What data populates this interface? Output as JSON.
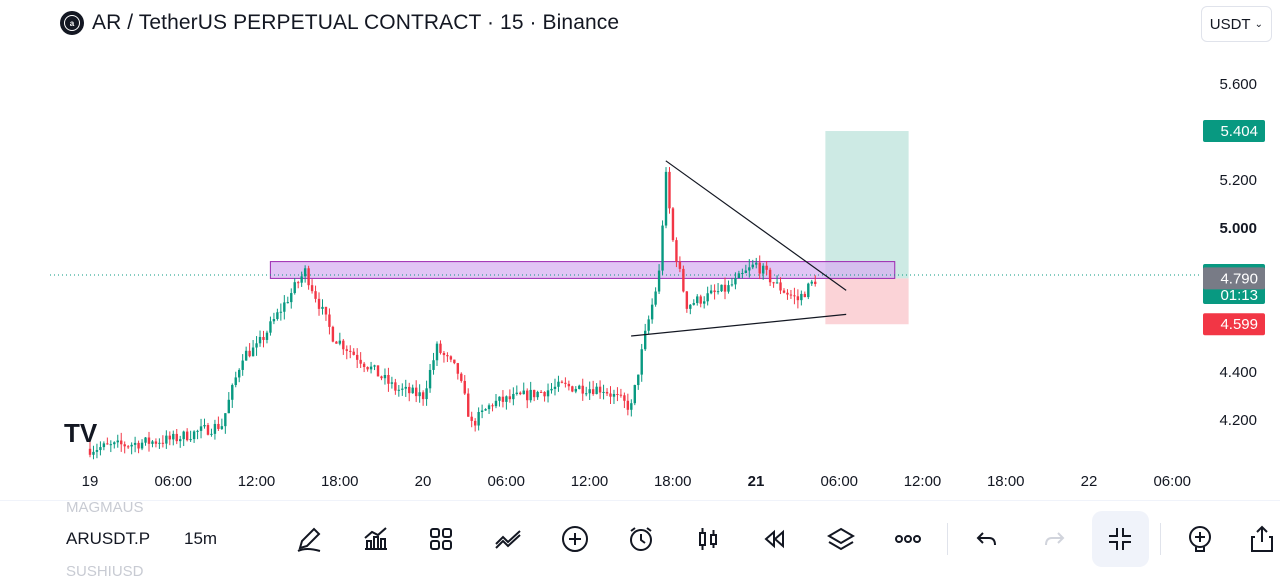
{
  "header": {
    "logo_text": "a",
    "title": "AR / TetherUS PERPETUAL CONTRACT · 15 · Binance"
  },
  "currency": {
    "label": "USDT",
    "icon": "chevron-down-icon"
  },
  "watermark": {
    "text": "TV",
    "icon": "tradingview-logo"
  },
  "toolbar": {
    "symbol_above": "MAGMAUS",
    "symbol": "ARUSDT.P",
    "symbol_below": "SUSHIUSD",
    "interval": "15m",
    "icons": [
      "drawing-pencil-icon",
      "indicators-icon",
      "templates-grid-icon",
      "compare-icon",
      "add-circle-icon",
      "alert-clock-icon",
      "candle-type-icon",
      "replay-icon",
      "layers-icon",
      "more-icon",
      "undo-icon",
      "redo-icon",
      "collapse-icon",
      "add-zoom-icon",
      "share-icon"
    ]
  },
  "chart_data": {
    "type": "candlestick",
    "title": "AR / TetherUS PERPETUAL CONTRACT · 15 · Binance",
    "x_ticks": [
      "19",
      "06:00",
      "12:00",
      "18:00",
      "20",
      "06:00",
      "12:00",
      "18:00",
      "21",
      "06:00",
      "12:00",
      "18:00",
      "22",
      "06:00"
    ],
    "x_ticks_bold": [
      "21"
    ],
    "y_ticks": [
      "5.600",
      "5.200",
      "5.000",
      "4.400",
      "4.200"
    ],
    "y_ticks_bold": [
      "5.000"
    ],
    "ylim": [
      4.05,
      5.75
    ],
    "price_labels": [
      {
        "name": "take-profit",
        "value": "5.404",
        "color": "#089981"
      },
      {
        "name": "last-price",
        "value": "4.804",
        "sub": "01:13",
        "color": "#089981"
      },
      {
        "name": "entry",
        "value": "4.790",
        "color": "#787b86"
      },
      {
        "name": "stop-loss",
        "value": "4.599",
        "color": "#f23645"
      }
    ],
    "colors": {
      "up": "#089981",
      "down": "#f23645",
      "zone": "#d7b2f2",
      "zone_border": "#9c27b0",
      "profit": "#cdeae4",
      "loss": "#fbd3d7"
    },
    "grid": false,
    "key_points": [
      {
        "time": "19 00:00",
        "price": 4.08
      },
      {
        "time": "19 06:00",
        "price": 4.12
      },
      {
        "time": "19 09:30",
        "price": 4.18
      },
      {
        "time": "19 11:00",
        "price": 4.47
      },
      {
        "time": "19 12:00",
        "price": 4.5
      },
      {
        "time": "19 15:30",
        "price": 4.82
      },
      {
        "time": "19 17:30",
        "price": 4.55
      },
      {
        "time": "19 22:00",
        "price": 4.33
      },
      {
        "time": "20 00:00",
        "price": 4.3
      },
      {
        "time": "20 01:00",
        "price": 4.5
      },
      {
        "time": "20 02:30",
        "price": 4.4
      },
      {
        "time": "20 03:30",
        "price": 4.18
      },
      {
        "time": "20 05:00",
        "price": 4.27
      },
      {
        "time": "20 08:00",
        "price": 4.31
      },
      {
        "time": "20 10:00",
        "price": 4.34
      },
      {
        "time": "20 13:00",
        "price": 4.33
      },
      {
        "time": "20 15:00",
        "price": 4.25
      },
      {
        "time": "20 16:00",
        "price": 4.55
      },
      {
        "time": "20 17:00",
        "price": 4.8
      },
      {
        "time": "20 17:30",
        "price": 5.22
      },
      {
        "time": "20 18:00",
        "price": 4.95
      },
      {
        "time": "20 19:00",
        "price": 4.68
      },
      {
        "time": "20 22:00",
        "price": 4.75
      },
      {
        "time": "21 00:00",
        "price": 4.85
      },
      {
        "time": "21 01:30",
        "price": 4.76
      },
      {
        "time": "21 03:00",
        "price": 4.7
      },
      {
        "time": "21 04:30",
        "price": 4.8
      }
    ],
    "annotations": [
      {
        "type": "zone",
        "from": "19 13:00",
        "to": "21 10:00",
        "low": 4.79,
        "high": 4.86
      },
      {
        "type": "trendline",
        "from": {
          "time": "20 17:30",
          "price": 5.28
        },
        "to": {
          "time": "21 06:30",
          "price": 4.74
        }
      },
      {
        "type": "trendline",
        "from": {
          "time": "20 15:00",
          "price": 4.55
        },
        "to": {
          "time": "21 06:30",
          "price": 4.64
        }
      },
      {
        "type": "long-position",
        "from": "21 05:00",
        "to": "21 11:00",
        "entry": 4.79,
        "target": 5.404,
        "stop": 4.599
      }
    ]
  }
}
